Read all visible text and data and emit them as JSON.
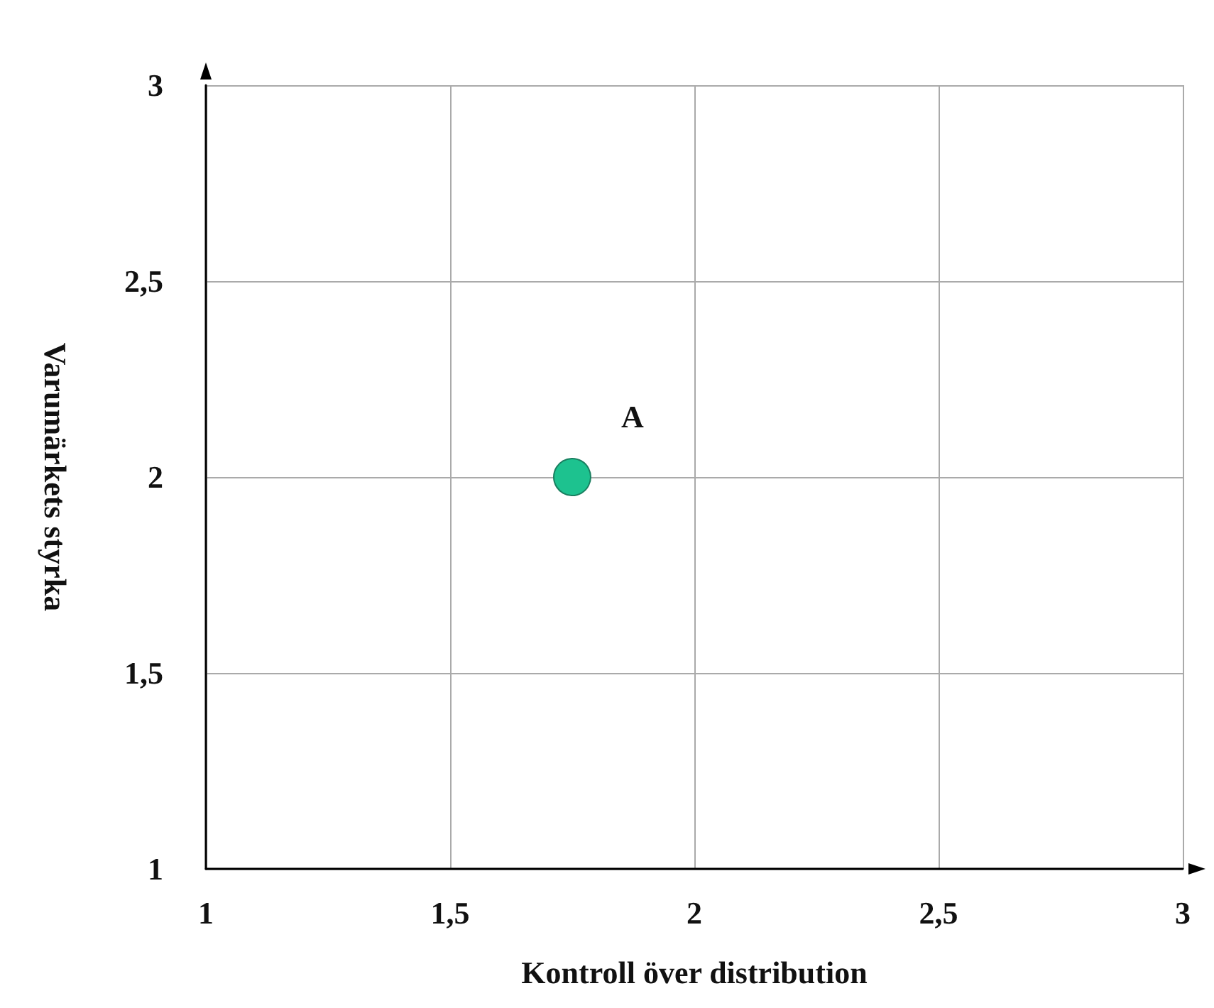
{
  "chart_data": {
    "type": "scatter",
    "xlabel": "Kontroll över distribution",
    "ylabel": "Varumärkets styrka",
    "x": [
      1.75
    ],
    "series": [
      {
        "name": "A",
        "color": "#1dc28f",
        "values": [
          2
        ]
      }
    ],
    "xlim": [
      1,
      3
    ],
    "ylim": [
      1,
      3
    ],
    "xticks": [
      {
        "value": 1,
        "label": "1"
      },
      {
        "value": 1.5,
        "label": "1,5"
      },
      {
        "value": 2,
        "label": "2"
      },
      {
        "value": 2.5,
        "label": "2,5"
      },
      {
        "value": 3,
        "label": "3"
      }
    ],
    "yticks": [
      {
        "value": 1,
        "label": "1"
      },
      {
        "value": 1.5,
        "label": "1,5"
      },
      {
        "value": 2,
        "label": "2"
      },
      {
        "value": 2.5,
        "label": "2,5"
      },
      {
        "value": 3,
        "label": "3"
      }
    ],
    "grid": true,
    "marker": "circle",
    "legend": false
  }
}
